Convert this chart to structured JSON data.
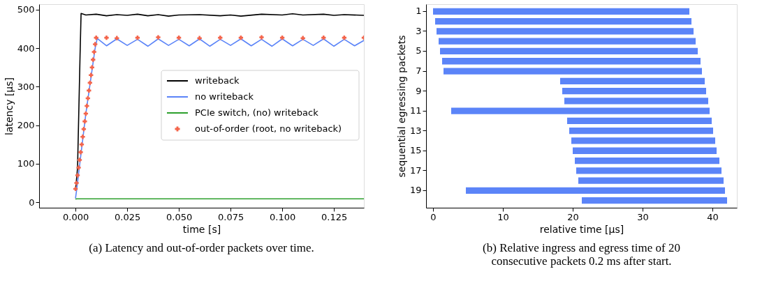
{
  "chart_data": [
    {
      "type": "line",
      "xlabel": "time [s]",
      "ylabel": "latency [μs]",
      "xlim": [
        -0.0176,
        0.1395
      ],
      "ylim": [
        -14,
        514
      ],
      "xticks": [
        {
          "value": 0,
          "label": "0.000"
        },
        {
          "value": 0.025,
          "label": "0.025"
        },
        {
          "value": 0.05,
          "label": "0.050"
        },
        {
          "value": 0.075,
          "label": "0.075"
        },
        {
          "value": 0.1,
          "label": "0.100"
        },
        {
          "value": 0.125,
          "label": "0.125"
        }
      ],
      "yticks": [
        0,
        100,
        200,
        300,
        400,
        500
      ],
      "grid": false,
      "legend": "right",
      "annotations": [
        "(a) Latency and out-of-order packets over time."
      ],
      "series": [
        {
          "name": "writeback",
          "type": "line",
          "color": "#000000",
          "x": [
            0,
            0.001,
            0.0022,
            0.0027,
            0.005,
            0.01,
            0.015,
            0.02,
            0.025,
            0.03,
            0.035,
            0.04,
            0.045,
            0.05,
            0.06,
            0.07,
            0.075,
            0.08,
            0.09,
            0.1,
            0.105,
            0.11,
            0.12,
            0.125,
            0.13,
            0.1395
          ],
          "values": [
            30,
            90,
            380,
            490,
            486,
            488,
            484,
            487,
            485,
            488,
            484,
            487,
            483,
            486,
            487,
            484,
            486,
            483,
            488,
            486,
            489,
            486,
            488,
            485,
            487,
            485
          ]
        },
        {
          "name": "no writeback",
          "type": "line",
          "color": "#5b84f8",
          "x": [
            0,
            0.0005,
            0.005,
            0.0095,
            0.0105,
            0.015,
            0.02,
            0.025,
            0.03,
            0.035,
            0.04,
            0.045,
            0.05,
            0.055,
            0.06,
            0.065,
            0.07,
            0.075,
            0.08,
            0.085,
            0.09,
            0.095,
            0.1,
            0.105,
            0.11,
            0.115,
            0.12,
            0.125,
            0.13,
            0.135,
            0.1395
          ],
          "values": [
            10,
            30,
            230,
            400,
            425,
            406,
            424,
            407,
            423,
            405,
            424,
            407,
            423,
            406,
            424,
            405,
            423,
            407,
            424,
            406,
            423,
            405,
            424,
            406,
            423,
            407,
            424,
            405,
            423,
            406,
            420
          ]
        },
        {
          "name": "PCIe switch, (no) writeback",
          "type": "line",
          "color": "#2ca02c",
          "x": [
            0,
            0.0005,
            0.03,
            0.06,
            0.09,
            0.12,
            0.1395
          ],
          "values": [
            8,
            9,
            9,
            9,
            9,
            9,
            9
          ]
        },
        {
          "name": "out-of-order (root, no writeback)",
          "type": "scatter",
          "marker": "cross",
          "color": "#f4644a",
          "x": [
            0,
            0.0005,
            0.001,
            0.0015,
            0.002,
            0.0025,
            0.003,
            0.0035,
            0.004,
            0.0045,
            0.005,
            0.0055,
            0.006,
            0.0065,
            0.007,
            0.0075,
            0.008,
            0.0085,
            0.009,
            0.0095,
            0.01,
            0.015,
            0.02,
            0.03,
            0.04,
            0.05,
            0.06,
            0.07,
            0.08,
            0.09,
            0.1,
            0.11,
            0.12,
            0.13,
            0.1395
          ],
          "values": [
            35,
            50,
            70,
            90,
            110,
            130,
            150,
            170,
            190,
            210,
            230,
            250,
            270,
            290,
            310,
            330,
            350,
            370,
            390,
            410,
            427,
            427,
            426,
            427,
            428,
            427,
            426,
            427,
            427,
            428,
            427,
            426,
            427,
            427,
            427
          ]
        }
      ]
    },
    {
      "type": "bar",
      "orientation": "horizontal",
      "xlabel": "relative time [μs]",
      "ylabel": "sequential egressing packets",
      "xlim": [
        -1,
        43.5
      ],
      "xticks": [
        0,
        10,
        20,
        30,
        40
      ],
      "grid": false,
      "color": "#5b84f8",
      "annotations": [
        "(b) Relative ingress and egress time of 20 consecutive packets 0.2 ms after start."
      ],
      "categories": [
        "1",
        null,
        "3",
        null,
        "5",
        null,
        "7",
        null,
        "9",
        null,
        "11",
        null,
        "13",
        null,
        "15",
        null,
        "17",
        null,
        "19",
        null
      ],
      "base": [
        0,
        0.3,
        0.5,
        0.8,
        1.0,
        1.3,
        1.5,
        18.2,
        18.5,
        18.8,
        2.6,
        19.2,
        19.5,
        19.8,
        20.0,
        20.3,
        20.5,
        20.8,
        4.7,
        21.3
      ],
      "values": [
        36.7,
        36.7,
        36.8,
        36.8,
        36.9,
        37.0,
        37.0,
        20.7,
        20.6,
        20.6,
        37.0,
        20.7,
        20.6,
        20.6,
        20.6,
        20.7,
        20.8,
        20.8,
        37.1,
        20.8
      ]
    }
  ]
}
